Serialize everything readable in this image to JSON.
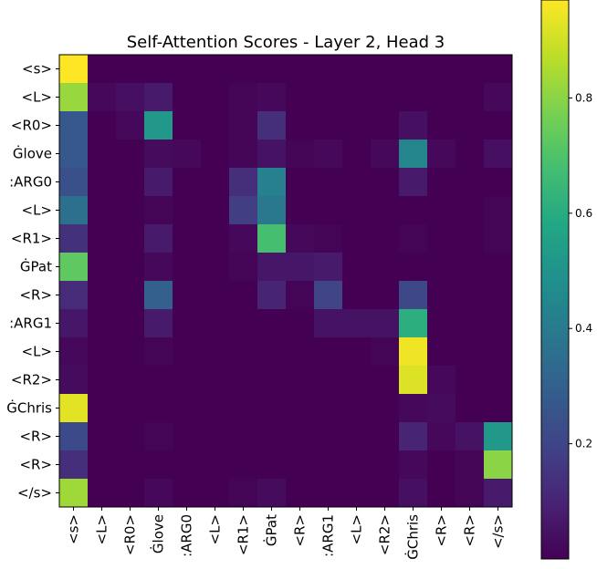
{
  "chart_data": {
    "type": "heatmap",
    "title": "Self-Attention Scores - Layer 2, Head 3",
    "x_tick_labels": [
      "<s>",
      "<L>",
      "<R0>",
      "Ġlove",
      ":ARG0",
      "<L>",
      "<R1>",
      "ĠPat",
      "<R>",
      ":ARG1",
      "<L>",
      "<R2>",
      "ĠChris",
      "<R>",
      "<R>",
      "</s>"
    ],
    "y_tick_labels": [
      "<s>",
      "<L>",
      "<R0>",
      "Ġlove",
      ":ARG0",
      "<L>",
      "<R1>",
      "ĠPat",
      "<R>",
      ":ARG1",
      "<L>",
      "<R2>",
      "ĠChris",
      "<R>",
      "<R>",
      "</s>"
    ],
    "values": [
      [
        0.97,
        0.0,
        0.0,
        0.0,
        0.0,
        0.0,
        0.0,
        0.0,
        0.0,
        0.0,
        0.0,
        0.0,
        0.0,
        0.0,
        0.0,
        0.0
      ],
      [
        0.82,
        0.02,
        0.04,
        0.07,
        0.0,
        0.0,
        0.01,
        0.02,
        0.0,
        0.0,
        0.0,
        0.0,
        0.0,
        0.0,
        0.0,
        0.02
      ],
      [
        0.27,
        0.0,
        0.02,
        0.52,
        0.0,
        0.0,
        0.01,
        0.13,
        0.0,
        0.0,
        0.0,
        0.0,
        0.04,
        0.0,
        0.0,
        0.0
      ],
      [
        0.27,
        0.0,
        0.0,
        0.03,
        0.02,
        0.0,
        0.01,
        0.05,
        0.01,
        0.02,
        0.0,
        0.02,
        0.44,
        0.02,
        0.0,
        0.04
      ],
      [
        0.24,
        0.0,
        0.0,
        0.07,
        0.0,
        0.0,
        0.13,
        0.42,
        0.0,
        0.0,
        0.0,
        0.0,
        0.07,
        0.0,
        0.0,
        0.0
      ],
      [
        0.36,
        0.0,
        0.0,
        0.01,
        0.0,
        0.0,
        0.18,
        0.39,
        0.0,
        0.0,
        0.0,
        0.0,
        0.0,
        0.0,
        0.0,
        0.01
      ],
      [
        0.14,
        0.0,
        0.0,
        0.07,
        0.0,
        0.0,
        0.02,
        0.68,
        0.02,
        0.01,
        0.0,
        0.0,
        0.01,
        0.0,
        0.0,
        0.01
      ],
      [
        0.73,
        0.0,
        0.0,
        0.02,
        0.0,
        0.0,
        0.01,
        0.06,
        0.06,
        0.07,
        0.0,
        0.0,
        0.0,
        0.0,
        0.0,
        0.0
      ],
      [
        0.12,
        0.0,
        0.0,
        0.3,
        0.0,
        0.0,
        0.0,
        0.1,
        0.01,
        0.2,
        0.0,
        0.0,
        0.21,
        0.0,
        0.0,
        0.0
      ],
      [
        0.06,
        0.0,
        0.0,
        0.07,
        0.0,
        0.0,
        0.0,
        0.0,
        0.0,
        0.05,
        0.05,
        0.05,
        0.61,
        0.0,
        0.0,
        0.0
      ],
      [
        0.02,
        0.0,
        0.0,
        0.01,
        0.0,
        0.0,
        0.0,
        0.0,
        0.0,
        0.0,
        0.0,
        0.01,
        0.95,
        0.0,
        0.0,
        0.0
      ],
      [
        0.03,
        0.0,
        0.0,
        0.0,
        0.0,
        0.0,
        0.0,
        0.0,
        0.0,
        0.0,
        0.0,
        0.0,
        0.92,
        0.02,
        0.0,
        0.0
      ],
      [
        0.93,
        0.0,
        0.0,
        0.0,
        0.0,
        0.0,
        0.0,
        0.0,
        0.0,
        0.0,
        0.0,
        0.0,
        0.02,
        0.03,
        0.0,
        0.0
      ],
      [
        0.22,
        0.0,
        0.0,
        0.01,
        0.0,
        0.0,
        0.0,
        0.0,
        0.0,
        0.0,
        0.0,
        0.0,
        0.1,
        0.02,
        0.05,
        0.52
      ],
      [
        0.13,
        0.0,
        0.0,
        0.0,
        0.0,
        0.0,
        0.0,
        0.0,
        0.0,
        0.0,
        0.0,
        0.0,
        0.02,
        0.0,
        0.01,
        0.8
      ],
      [
        0.83,
        0.0,
        0.0,
        0.02,
        0.0,
        0.0,
        0.01,
        0.03,
        0.0,
        0.0,
        0.0,
        0.0,
        0.04,
        0.0,
        0.01,
        0.07
      ]
    ],
    "colormap": "viridis",
    "colorbar_range": [
      0.0,
      0.97
    ],
    "colorbar_ticks": [
      0.2,
      0.4,
      0.6,
      0.8
    ],
    "colorbar_tick_labels": [
      "0.2",
      "0.4",
      "0.6",
      "0.8"
    ],
    "grid": false
  }
}
